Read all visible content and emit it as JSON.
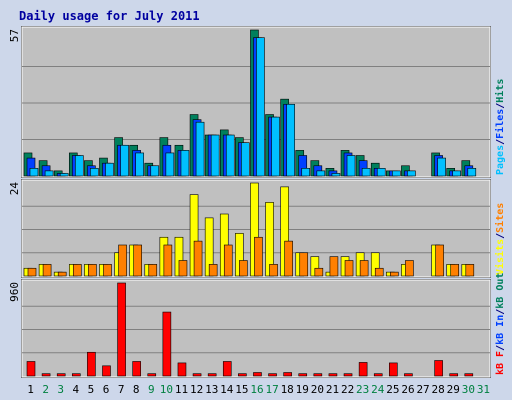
{
  "chart_data": {
    "type": "bar",
    "title": "Daily usage for July 2011",
    "days": [
      "1",
      "2",
      "3",
      "4",
      "5",
      "6",
      "7",
      "8",
      "9",
      "10",
      "11",
      "12",
      "13",
      "14",
      "15",
      "16",
      "17",
      "18",
      "19",
      "20",
      "21",
      "22",
      "23",
      "24",
      "25",
      "26",
      "27",
      "28",
      "29",
      "30",
      "31"
    ],
    "weekend_days": [
      "2",
      "3",
      "9",
      "10",
      "16",
      "17",
      "23",
      "24",
      "30",
      "31"
    ],
    "panels": [
      {
        "id": "top",
        "ymax_label": "57",
        "ymax": 57,
        "legend": [
          {
            "text": "Pages",
            "color": "#00c0ff"
          },
          {
            "text": "/",
            "color": "#000080"
          },
          {
            "text": "Files",
            "color": "#0040ff"
          },
          {
            "text": "/",
            "color": "#000080"
          },
          {
            "text": "Hits",
            "color": "#00805c"
          }
        ],
        "series": [
          {
            "name": "Hits",
            "color": "#00805c",
            "values": [
              9,
              6,
              2,
              9,
              6,
              7,
              15,
              12,
              5,
              15,
              12,
              24,
              16,
              18,
              15,
              57,
              24,
              30,
              10,
              6,
              3,
              10,
              8,
              5,
              2,
              4,
              0,
              9,
              3,
              6,
              0
            ]
          },
          {
            "name": "Files",
            "color": "#0040ff",
            "values": [
              7,
              4,
              1,
              8,
              4,
              5,
              12,
              10,
              4,
              12,
              10,
              22,
              16,
              16,
              13,
              54,
              23,
              28,
              8,
              4,
              2,
              9,
              6,
              3,
              2,
              2,
              0,
              8,
              2,
              4,
              0
            ]
          },
          {
            "name": "Pages",
            "color": "#00c0ff",
            "values": [
              3,
              2,
              1,
              8,
              3,
              5,
              12,
              9,
              4,
              9,
              10,
              21,
              16,
              16,
              13,
              54,
              23,
              28,
              3,
              2,
              1,
              8,
              3,
              3,
              2,
              2,
              0,
              7,
              2,
              3,
              0
            ]
          }
        ]
      },
      {
        "id": "middle",
        "ymax_label": "24",
        "ymax": 24,
        "legend": [
          {
            "text": "Visits",
            "color": "#ffff00"
          },
          {
            "text": "/",
            "color": "#000080"
          },
          {
            "text": "Sites",
            "color": "#ff8000"
          }
        ],
        "series": [
          {
            "name": "Visits",
            "color": "#ffff00",
            "values": [
              2,
              3,
              1,
              3,
              3,
              3,
              6,
              8,
              3,
              10,
              10,
              21,
              15,
              16,
              11,
              24,
              19,
              23,
              6,
              5,
              1,
              5,
              6,
              6,
              1,
              3,
              0,
              8,
              3,
              3,
              0
            ]
          },
          {
            "name": "Sites",
            "color": "#ff8000",
            "values": [
              2,
              3,
              1,
              3,
              3,
              3,
              8,
              8,
              3,
              8,
              4,
              9,
              3,
              8,
              4,
              10,
              3,
              9,
              6,
              2,
              5,
              4,
              4,
              2,
              1,
              4,
              0,
              8,
              3,
              3,
              0
            ]
          }
        ]
      },
      {
        "id": "bottom",
        "ymax_label": "960",
        "ymax": 960,
        "legend": [
          {
            "text": "kB F",
            "color": "#ff0000"
          },
          {
            "text": "/",
            "color": "#000080"
          },
          {
            "text": "kB In",
            "color": "#0040ff"
          },
          {
            "text": "/",
            "color": "#000080"
          },
          {
            "text": "kB Out",
            "color": "#00805c"
          }
        ],
        "series": [
          {
            "name": "kB F",
            "color": "#ff0000",
            "values": [
              150,
              24,
              24,
              24,
              245,
              105,
              960,
              150,
              24,
              660,
              135,
              24,
              24,
              150,
              24,
              36,
              24,
              36,
              24,
              24,
              24,
              24,
              140,
              24,
              135,
              24,
              0,
              160,
              24,
              24,
              0
            ]
          }
        ]
      }
    ]
  }
}
